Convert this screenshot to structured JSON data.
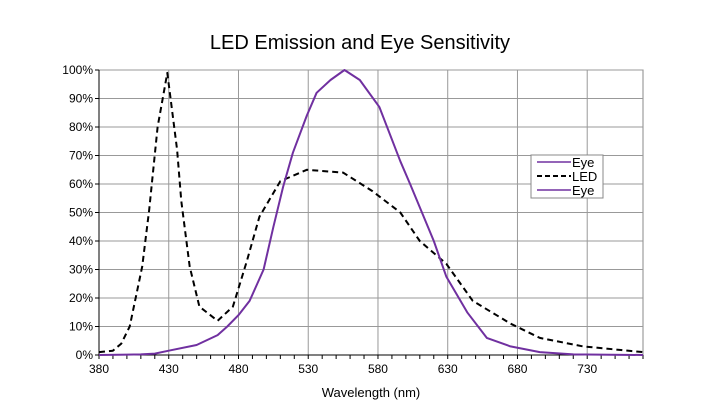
{
  "chart_data": {
    "type": "line",
    "title": "LED Emission and Eye Sensitivity",
    "xlabel": "Wavelength (nm)",
    "ylabel": "",
    "xlim": [
      380,
      770
    ],
    "ylim": [
      0,
      100
    ],
    "x_ticks": [
      380,
      430,
      480,
      530,
      580,
      630,
      680,
      730
    ],
    "y_ticks": [
      "0%",
      "10%",
      "20%",
      "30%",
      "40%",
      "50%",
      "60%",
      "70%",
      "80%",
      "90%",
      "100%"
    ],
    "grid": true,
    "legend_position": "right",
    "legend": [
      {
        "label": "Eye",
        "style": "solid",
        "color": "#7030A0"
      },
      {
        "label": "LED",
        "style": "dashed",
        "color": "#000000"
      },
      {
        "label": "Eye",
        "style": "solid",
        "color": "#7030A0"
      }
    ],
    "series": [
      {
        "name": "LED",
        "style": "dashed",
        "color": "#000000",
        "x": [
          380,
          390,
          396,
          402,
          411,
          416,
          422,
          429,
          436,
          439,
          445,
          452,
          465,
          476,
          486,
          495,
          510,
          529,
          555,
          576,
          596,
          610,
          629,
          648,
          675,
          696,
          727,
          770
        ],
        "y": [
          1,
          1.5,
          4,
          10,
          31,
          51,
          80,
          99,
          72,
          54,
          31,
          17,
          12,
          17,
          33,
          48.5,
          61,
          65,
          64,
          57.5,
          50,
          40,
          32,
          19,
          11,
          6,
          3,
          1
        ]
      },
      {
        "name": "Eye",
        "style": "solid",
        "color": "#7030A0",
        "x": [
          380,
          410,
          420,
          430,
          450,
          465,
          472,
          480,
          488,
          498,
          505,
          512,
          519,
          529,
          536,
          546,
          556,
          567,
          581,
          596,
          603,
          620,
          629,
          644,
          658,
          675,
          696,
          720,
          770
        ],
        "y": [
          0,
          0.2,
          0.5,
          1.5,
          3.5,
          7,
          10,
          14,
          19,
          30,
          45,
          59,
          71,
          84,
          92,
          96.5,
          100,
          96.5,
          87,
          68,
          60,
          40,
          27.5,
          15,
          6,
          3,
          1,
          0.2,
          0
        ]
      }
    ]
  }
}
